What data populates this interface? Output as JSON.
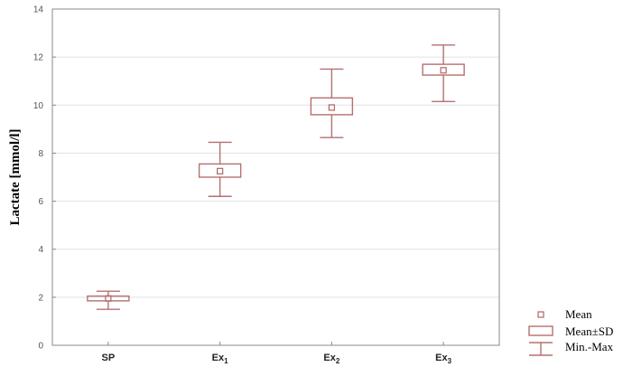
{
  "chart_data": {
    "type": "boxplot",
    "ylabel": "Lactate [mmol/l]",
    "ylim": [
      0,
      14
    ],
    "yticks": [
      0,
      2,
      4,
      6,
      8,
      10,
      12,
      14
    ],
    "grid": true,
    "legend_position": "bottom-right",
    "categories": [
      {
        "base": "SP",
        "sub": ""
      },
      {
        "base": "Ex",
        "sub": "1"
      },
      {
        "base": "Ex",
        "sub": "2"
      },
      {
        "base": "Ex",
        "sub": "3"
      }
    ],
    "series": [
      {
        "category": "SP",
        "mean": 1.95,
        "sd_low": 1.85,
        "sd_high": 2.05,
        "min": 1.5,
        "max": 2.25
      },
      {
        "category": "Ex1",
        "mean": 7.25,
        "sd_low": 7.0,
        "sd_high": 7.55,
        "min": 6.2,
        "max": 8.45
      },
      {
        "category": "Ex2",
        "mean": 9.9,
        "sd_low": 9.6,
        "sd_high": 10.3,
        "min": 8.65,
        "max": 11.5
      },
      {
        "category": "Ex3",
        "mean": 11.45,
        "sd_low": 11.25,
        "sd_high": 11.7,
        "min": 10.15,
        "max": 12.5
      }
    ],
    "legend": [
      {
        "symbol": "mean",
        "label": "Mean"
      },
      {
        "symbol": "box",
        "label": "Mean±SD"
      },
      {
        "symbol": "whisker",
        "label": "Min.-Max"
      }
    ],
    "color": "#b5706f"
  }
}
